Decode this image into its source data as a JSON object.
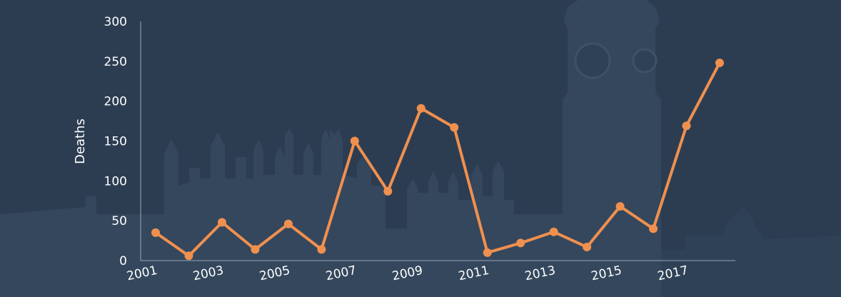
{
  "colors": {
    "background": "#2c3d52",
    "silhouette": "#34475c",
    "silhouette_dark": "#29394b",
    "line": "#f0904f",
    "axis": "#9aa6b3",
    "text": "#ffffff"
  },
  "chart_data": {
    "type": "line",
    "title": "",
    "xlabel": "",
    "ylabel": "Deaths",
    "x": [
      2001,
      2002,
      2003,
      2004,
      2005,
      2006,
      2007,
      2008,
      2009,
      2010,
      2011,
      2012,
      2013,
      2014,
      2015,
      2016,
      2017,
      2018
    ],
    "x_tick_labels": [
      "2001",
      "2003",
      "2005",
      "2007",
      "2009",
      "2011",
      "2013",
      "2015",
      "2017"
    ],
    "y_ticks": [
      0,
      50,
      100,
      150,
      200,
      250,
      300
    ],
    "ylim": [
      0,
      300
    ],
    "grid": false,
    "series": [
      {
        "values": [
          35,
          6,
          48,
          14,
          46,
          14,
          150,
          87,
          191,
          167,
          10,
          22,
          36,
          17,
          68,
          40,
          169,
          248
        ]
      }
    ]
  }
}
